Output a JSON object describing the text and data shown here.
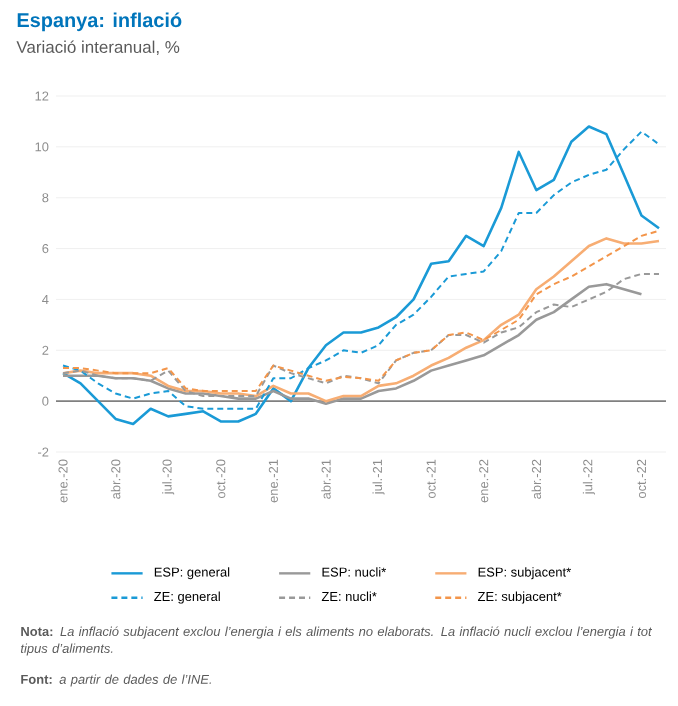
{
  "chart_data": {
    "type": "line",
    "title": "Espanya: inflació",
    "subtitle": "Variació interanual, %",
    "categories": [
      "ene.-20",
      null,
      null,
      "abr.-20",
      null,
      null,
      "jul.-20",
      null,
      null,
      "oct.-20",
      null,
      null,
      "ene.-21",
      null,
      null,
      "abr.-21",
      null,
      null,
      "jul.-21",
      null,
      null,
      "oct.-21",
      null,
      null,
      "ene.-22",
      null,
      null,
      "abr.-22",
      null,
      null,
      "jul.-22",
      null,
      null,
      "oct.-22",
      null
    ],
    "series": [
      {
        "name": "ESP: general",
        "color": "#1a9ad6",
        "line_style": "solid",
        "values": [
          1.1,
          0.7,
          0.0,
          -0.7,
          -0.9,
          -0.3,
          -0.6,
          -0.5,
          -0.4,
          -0.8,
          -0.8,
          -0.5,
          0.5,
          0.0,
          1.3,
          2.2,
          2.7,
          2.7,
          2.9,
          3.3,
          4.0,
          5.4,
          5.5,
          6.5,
          6.1,
          7.6,
          9.8,
          8.3,
          8.7,
          10.2,
          10.8,
          10.5,
          8.9,
          7.3,
          6.8
        ]
      },
      {
        "name": "ESP: nucli*",
        "color": "#999999",
        "line_style": "solid",
        "values": [
          1.0,
          1.0,
          1.0,
          0.9,
          0.9,
          0.8,
          0.5,
          0.3,
          0.3,
          0.2,
          0.1,
          0.1,
          0.4,
          0.1,
          0.1,
          -0.1,
          0.1,
          0.1,
          0.4,
          0.5,
          0.8,
          1.2,
          1.4,
          1.6,
          1.8,
          2.2,
          2.6,
          3.2,
          3.5,
          4.0,
          4.5,
          4.6,
          4.4,
          4.2,
          null
        ]
      },
      {
        "name": "ESP: subjacent*",
        "color": "#f7ad73",
        "line_style": "solid",
        "values": [
          1.1,
          1.2,
          1.1,
          1.1,
          1.1,
          1.0,
          0.6,
          0.4,
          0.4,
          0.3,
          0.3,
          0.2,
          0.6,
          0.3,
          0.3,
          0.0,
          0.2,
          0.2,
          0.6,
          0.7,
          1.0,
          1.4,
          1.7,
          2.1,
          2.4,
          3.0,
          3.4,
          4.4,
          4.9,
          5.5,
          6.1,
          6.4,
          6.2,
          6.2,
          6.3
        ]
      },
      {
        "name": "ZE: general",
        "color": "#1a9ad6",
        "line_style": "dashed",
        "values": [
          1.4,
          1.2,
          0.7,
          0.3,
          0.1,
          0.3,
          0.4,
          -0.2,
          -0.3,
          -0.3,
          -0.3,
          -0.3,
          0.9,
          0.9,
          1.3,
          1.6,
          2.0,
          1.9,
          2.2,
          3.0,
          3.4,
          4.1,
          4.9,
          5.0,
          5.1,
          5.9,
          7.4,
          7.4,
          8.1,
          8.6,
          8.9,
          9.1,
          9.9,
          10.6,
          10.1
        ]
      },
      {
        "name": "ZE: nucli*",
        "color": "#999999",
        "line_style": "dashed",
        "values": [
          1.1,
          1.2,
          1.0,
          0.9,
          0.9,
          0.8,
          1.2,
          0.4,
          0.2,
          0.2,
          0.2,
          0.2,
          1.4,
          1.1,
          0.9,
          0.7,
          1.0,
          0.9,
          0.7,
          1.6,
          1.9,
          2.0,
          2.6,
          2.6,
          2.3,
          2.7,
          2.9,
          3.5,
          3.8,
          3.7,
          4.0,
          4.3,
          4.8,
          5.0,
          5.0
        ]
      },
      {
        "name": "ZE: subjacent*",
        "color": "#f3954a",
        "line_style": "dashed",
        "values": [
          1.3,
          1.3,
          1.2,
          1.1,
          1.1,
          1.1,
          1.3,
          0.5,
          0.4,
          0.4,
          0.4,
          0.4,
          1.4,
          1.2,
          1.0,
          0.8,
          0.95,
          0.9,
          0.8,
          1.6,
          1.9,
          2.0,
          2.6,
          2.7,
          2.4,
          2.8,
          3.2,
          4.2,
          4.6,
          4.9,
          5.3,
          5.7,
          6.1,
          6.5,
          6.7
        ]
      }
    ],
    "ylim": [
      -2,
      12
    ],
    "yticks": [
      -2,
      0,
      2,
      4,
      6,
      8,
      10,
      12
    ],
    "grid": "y",
    "legend": "bottom",
    "ref_lines": [
      {
        "axis": "y",
        "value": 0,
        "color": "#808080"
      }
    ],
    "annotations": [
      "**Nota:** *La inflació subjacent exclou l’energia i els aliments no elaborats. La inflació nucli exclou l’energia i tot tipus d’aliments.*",
      "**Font:** *a partir de dades de l’INE.*"
    ]
  }
}
